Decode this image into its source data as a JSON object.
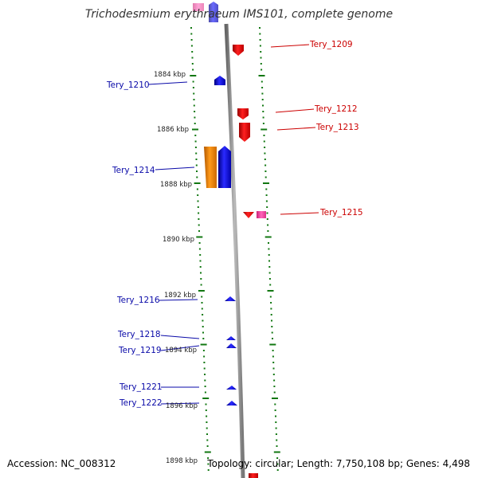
{
  "header": {
    "title": "Trichodesmium erythraeum IMS101, complete genome"
  },
  "footer": {
    "accession": "Accession: NC_008312",
    "summary": "Topology: circular; Length: 7,750,108 bp; Genes: 4,498"
  },
  "scale_labels": [
    "1884 kbp",
    "1886 kbp",
    "1888 kbp",
    "1890 kbp",
    "1892 kbp",
    "1894 kbp",
    "1896 kbp",
    "1898 kbp"
  ],
  "genes_minus_strand": [
    {
      "label": "Tery_1210"
    },
    {
      "label": "Tery_1214"
    },
    {
      "label": "Tery_1216"
    },
    {
      "label": "Tery_1218"
    },
    {
      "label": "Tery_1219"
    },
    {
      "label": "Tery_1221"
    },
    {
      "label": "Tery_1222"
    }
  ],
  "genes_plus_strand": [
    {
      "label": "Tery_1209"
    },
    {
      "label": "Tery_1212"
    },
    {
      "label": "Tery_1213"
    },
    {
      "label": "Tery_1215"
    }
  ],
  "colors": {
    "minus_strand": "#0000ee",
    "plus_strand": "#ee0000",
    "rna_feature": "#ff8c00",
    "pink_feature": "#ff44aa",
    "backbone": "#888888",
    "tick": "#117711"
  }
}
